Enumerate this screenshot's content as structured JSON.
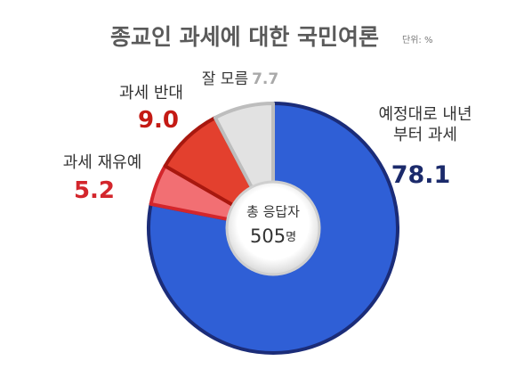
{
  "chart_data": {
    "type": "pie",
    "title": "종교인 과세에 대한 국민여론",
    "unit_note": "단위: %",
    "categories": [
      "예정대로 내년부터 과세",
      "과세 재유예",
      "과세 반대",
      "잘 모름"
    ],
    "values": [
      78.1,
      5.2,
      9.0,
      7.7
    ],
    "value_labels": [
      "78.1",
      "5.2",
      "9.0",
      "7.7"
    ],
    "colors": [
      "#2f5fd6",
      "#f26f73",
      "#e3402e",
      "#e2e2e2"
    ],
    "center_text": "총 응답자",
    "total": 505,
    "total_unit": "명"
  }
}
